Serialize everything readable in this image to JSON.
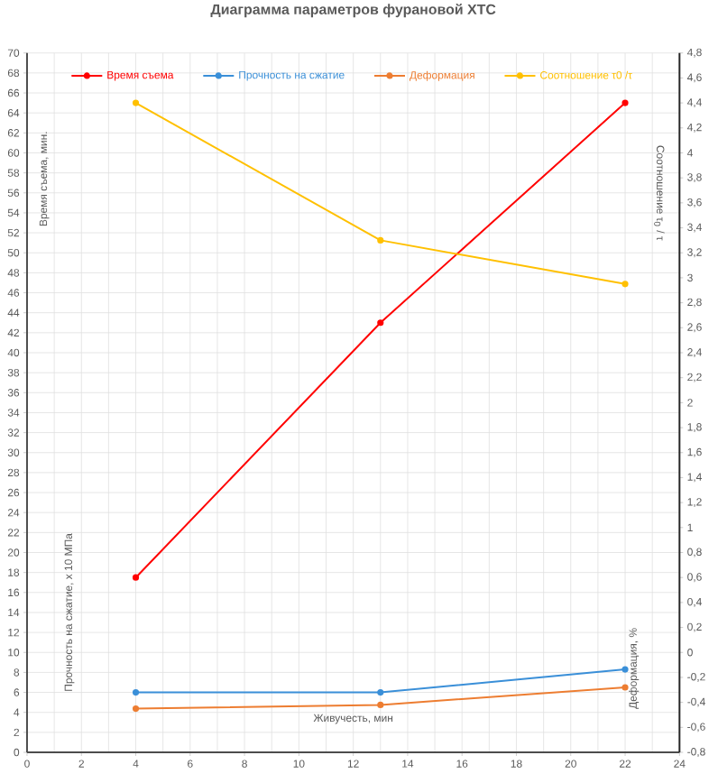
{
  "chart_data": {
    "type": "line",
    "title": "Диаграмма параметров фурановой ХТС",
    "xlabel": "Живучесть, мин",
    "ylabel": "Время съема, мин.",
    "y2label": "Соотношение τ$_{0}$ / τ",
    "annotations": [
      "Прочность на сжатие, x 10 МПа",
      "Деформация, %"
    ],
    "x": [
      4,
      13,
      22
    ],
    "series": [
      {
        "name": "Время съема",
        "color": "#ff0000",
        "values": [
          17.5,
          43,
          65
        ]
      },
      {
        "name": "Прочность на сжатие",
        "color": "#3a8fd8",
        "values": [
          6,
          6,
          8.3
        ]
      },
      {
        "name": "Деформация",
        "color": "#ed7d31",
        "values": [
          -0.45,
          -0.42,
          -0.28
        ],
        "axis": "y2"
      },
      {
        "name": "Соотношение τ0 /τ",
        "color": "#ffc000",
        "values": [
          4.4,
          3.3,
          2.95
        ],
        "axis": "y2"
      }
    ],
    "xlim": [
      0,
      24
    ],
    "xticks": [
      0,
      2,
      4,
      6,
      8,
      10,
      12,
      14,
      16,
      18,
      20,
      22,
      24
    ],
    "ylim": [
      0,
      70
    ],
    "yticks": [
      0,
      2,
      4,
      6,
      8,
      10,
      12,
      14,
      16,
      18,
      20,
      22,
      24,
      26,
      28,
      30,
      32,
      34,
      36,
      38,
      40,
      42,
      44,
      46,
      48,
      50,
      52,
      54,
      56,
      58,
      60,
      62,
      64,
      66,
      68,
      70
    ],
    "y2lim": [
      -0.8,
      4.8
    ],
    "y2ticks": [
      {
        "value": -0.8,
        "label": "-0,8"
      },
      {
        "value": -0.6,
        "label": "-0,6"
      },
      {
        "value": -0.4,
        "label": "-0,4"
      },
      {
        "value": -0.2,
        "label": "-0,2"
      },
      0,
      {
        "value": 0.2,
        "label": "0,2"
      },
      {
        "value": 0.4,
        "label": "0,4"
      },
      {
        "value": 0.6,
        "label": "0,6"
      },
      {
        "value": 0.8,
        "label": "0,8"
      },
      1,
      {
        "value": 1.2,
        "label": "1,2"
      },
      {
        "value": 1.4,
        "label": "1,4"
      },
      {
        "value": 1.6,
        "label": "1,6"
      },
      {
        "value": 1.8,
        "label": "1,8"
      },
      2,
      {
        "value": 2.2,
        "label": "2,2"
      },
      {
        "value": 2.4,
        "label": "2,4"
      },
      {
        "value": 2.6,
        "label": "2,6"
      },
      {
        "value": 2.8,
        "label": "2,8"
      },
      3,
      {
        "value": 3.2,
        "label": "3,2"
      },
      {
        "value": 3.4,
        "label": "3,4"
      },
      {
        "value": 3.6,
        "label": "3,6"
      },
      {
        "value": 3.8,
        "label": "3,8"
      },
      4,
      {
        "value": 4.2,
        "label": "4,2"
      },
      {
        "value": 4.4,
        "label": "4,4"
      },
      {
        "value": 4.6,
        "label": "4,6"
      },
      {
        "value": 4.8,
        "label": "4,8"
      }
    ],
    "grid": true,
    "legend": "top",
    "marker": "circle",
    "line_style": "solid"
  }
}
